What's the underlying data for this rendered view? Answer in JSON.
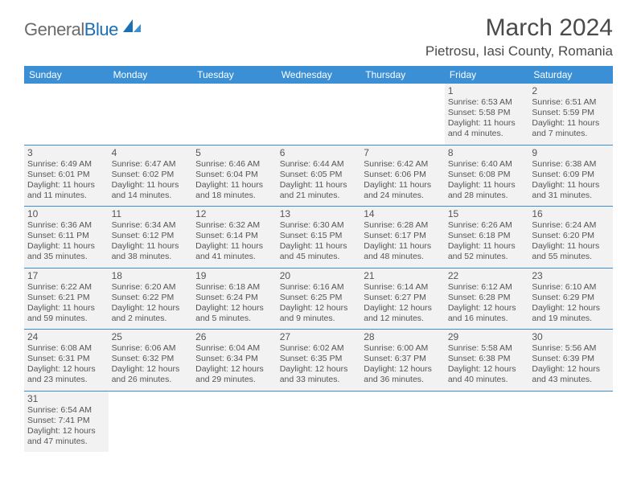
{
  "brand": {
    "name_gray": "General",
    "name_blue": "Blue"
  },
  "title": "March 2024",
  "location": "Pietrosu, Iasi County, Romania",
  "colors": {
    "header_bg": "#3b8fd4",
    "header_text": "#ffffff",
    "cell_bg": "#f2f2f2",
    "border": "#3b8fd4",
    "text": "#555555",
    "brand_gray": "#6b6b6b",
    "brand_blue": "#1a6fb5"
  },
  "weekdays": [
    "Sunday",
    "Monday",
    "Tuesday",
    "Wednesday",
    "Thursday",
    "Friday",
    "Saturday"
  ],
  "weeks": [
    [
      null,
      null,
      null,
      null,
      null,
      {
        "n": "1",
        "sr": "6:53 AM",
        "ss": "5:58 PM",
        "dl": "11 hours and 4 minutes."
      },
      {
        "n": "2",
        "sr": "6:51 AM",
        "ss": "5:59 PM",
        "dl": "11 hours and 7 minutes."
      }
    ],
    [
      {
        "n": "3",
        "sr": "6:49 AM",
        "ss": "6:01 PM",
        "dl": "11 hours and 11 minutes."
      },
      {
        "n": "4",
        "sr": "6:47 AM",
        "ss": "6:02 PM",
        "dl": "11 hours and 14 minutes."
      },
      {
        "n": "5",
        "sr": "6:46 AM",
        "ss": "6:04 PM",
        "dl": "11 hours and 18 minutes."
      },
      {
        "n": "6",
        "sr": "6:44 AM",
        "ss": "6:05 PM",
        "dl": "11 hours and 21 minutes."
      },
      {
        "n": "7",
        "sr": "6:42 AM",
        "ss": "6:06 PM",
        "dl": "11 hours and 24 minutes."
      },
      {
        "n": "8",
        "sr": "6:40 AM",
        "ss": "6:08 PM",
        "dl": "11 hours and 28 minutes."
      },
      {
        "n": "9",
        "sr": "6:38 AM",
        "ss": "6:09 PM",
        "dl": "11 hours and 31 minutes."
      }
    ],
    [
      {
        "n": "10",
        "sr": "6:36 AM",
        "ss": "6:11 PM",
        "dl": "11 hours and 35 minutes."
      },
      {
        "n": "11",
        "sr": "6:34 AM",
        "ss": "6:12 PM",
        "dl": "11 hours and 38 minutes."
      },
      {
        "n": "12",
        "sr": "6:32 AM",
        "ss": "6:14 PM",
        "dl": "11 hours and 41 minutes."
      },
      {
        "n": "13",
        "sr": "6:30 AM",
        "ss": "6:15 PM",
        "dl": "11 hours and 45 minutes."
      },
      {
        "n": "14",
        "sr": "6:28 AM",
        "ss": "6:17 PM",
        "dl": "11 hours and 48 minutes."
      },
      {
        "n": "15",
        "sr": "6:26 AM",
        "ss": "6:18 PM",
        "dl": "11 hours and 52 minutes."
      },
      {
        "n": "16",
        "sr": "6:24 AM",
        "ss": "6:20 PM",
        "dl": "11 hours and 55 minutes."
      }
    ],
    [
      {
        "n": "17",
        "sr": "6:22 AM",
        "ss": "6:21 PM",
        "dl": "11 hours and 59 minutes."
      },
      {
        "n": "18",
        "sr": "6:20 AM",
        "ss": "6:22 PM",
        "dl": "12 hours and 2 minutes."
      },
      {
        "n": "19",
        "sr": "6:18 AM",
        "ss": "6:24 PM",
        "dl": "12 hours and 5 minutes."
      },
      {
        "n": "20",
        "sr": "6:16 AM",
        "ss": "6:25 PM",
        "dl": "12 hours and 9 minutes."
      },
      {
        "n": "21",
        "sr": "6:14 AM",
        "ss": "6:27 PM",
        "dl": "12 hours and 12 minutes."
      },
      {
        "n": "22",
        "sr": "6:12 AM",
        "ss": "6:28 PM",
        "dl": "12 hours and 16 minutes."
      },
      {
        "n": "23",
        "sr": "6:10 AM",
        "ss": "6:29 PM",
        "dl": "12 hours and 19 minutes."
      }
    ],
    [
      {
        "n": "24",
        "sr": "6:08 AM",
        "ss": "6:31 PM",
        "dl": "12 hours and 23 minutes."
      },
      {
        "n": "25",
        "sr": "6:06 AM",
        "ss": "6:32 PM",
        "dl": "12 hours and 26 minutes."
      },
      {
        "n": "26",
        "sr": "6:04 AM",
        "ss": "6:34 PM",
        "dl": "12 hours and 29 minutes."
      },
      {
        "n": "27",
        "sr": "6:02 AM",
        "ss": "6:35 PM",
        "dl": "12 hours and 33 minutes."
      },
      {
        "n": "28",
        "sr": "6:00 AM",
        "ss": "6:37 PM",
        "dl": "12 hours and 36 minutes."
      },
      {
        "n": "29",
        "sr": "5:58 AM",
        "ss": "6:38 PM",
        "dl": "12 hours and 40 minutes."
      },
      {
        "n": "30",
        "sr": "5:56 AM",
        "ss": "6:39 PM",
        "dl": "12 hours and 43 minutes."
      }
    ],
    [
      {
        "n": "31",
        "sr": "6:54 AM",
        "ss": "7:41 PM",
        "dl": "12 hours and 47 minutes."
      },
      null,
      null,
      null,
      null,
      null,
      null
    ]
  ],
  "labels": {
    "sunrise": "Sunrise:",
    "sunset": "Sunset:",
    "daylight": "Daylight:"
  }
}
